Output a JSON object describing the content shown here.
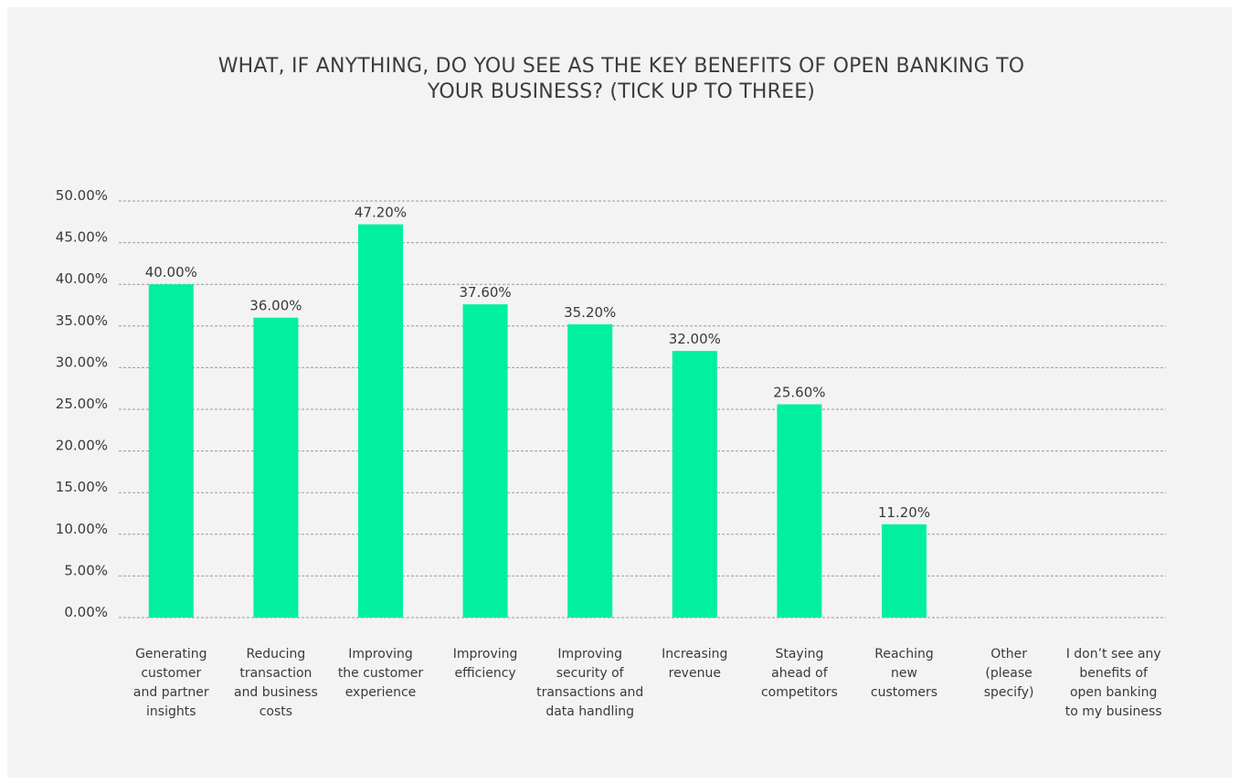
{
  "colors": {
    "bar": "#00F0A0",
    "background": "#F3F3F3",
    "text": "#3A3A3A"
  },
  "chart_data": {
    "type": "bar",
    "title_lines": [
      "WHAT, IF ANYTHING, DO YOU SEE AS THE KEY BENEFITS OF OPEN BANKING TO",
      "YOUR BUSINESS? (TICK UP TO THREE)"
    ],
    "categories": [
      [
        "Generating",
        "customer",
        "and partner",
        "insights"
      ],
      [
        "Reducing",
        "transaction",
        "and business",
        "costs"
      ],
      [
        "Improving",
        "the customer",
        "experience"
      ],
      [
        "Improving",
        "efficiency"
      ],
      [
        "Improving",
        "security of",
        "transactions and",
        "data handling"
      ],
      [
        "Increasing",
        "revenue"
      ],
      [
        "Staying",
        "ahead of",
        "competitors"
      ],
      [
        "Reaching",
        "new",
        "customers"
      ],
      [
        "Other",
        "(please",
        "specify)"
      ],
      [
        "I don’t see any",
        "benefits of",
        "open banking",
        "to my business"
      ]
    ],
    "values": [
      40.0,
      36.0,
      47.2,
      37.6,
      35.2,
      32.0,
      25.6,
      11.2,
      null,
      null
    ],
    "data_labels": [
      "40.00%",
      "36.00%",
      "47.20%",
      "37.60%",
      "35.20%",
      "32.00%",
      "25.60%",
      "11.20%",
      "",
      ""
    ],
    "ylim": [
      0,
      50
    ],
    "yticks": [
      0,
      5,
      10,
      15,
      20,
      25,
      30,
      35,
      40,
      45,
      50
    ],
    "ytick_labels": [
      "0.00%",
      "5.00%",
      "10.00%",
      "15.00%",
      "20.00%",
      "25.00%",
      "30.00%",
      "35.00%",
      "40.00%",
      "45.00%",
      "50.00%"
    ],
    "grid": true,
    "legend": "none"
  }
}
